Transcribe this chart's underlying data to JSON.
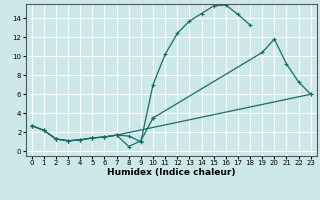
{
  "xlabel": "Humidex (Indice chaleur)",
  "background_color": "#cce8e8",
  "grid_color": "#ffffff",
  "line_color": "#1a6b6b",
  "xlim": [
    -0.5,
    23.5
  ],
  "ylim": [
    -0.5,
    15.5
  ],
  "xticks": [
    0,
    1,
    2,
    3,
    4,
    5,
    6,
    7,
    8,
    9,
    10,
    11,
    12,
    13,
    14,
    15,
    16,
    17,
    18,
    19,
    20,
    21,
    22,
    23
  ],
  "yticks": [
    0,
    2,
    4,
    6,
    8,
    10,
    12,
    14
  ],
  "series": [
    {
      "segments": [
        {
          "x": [
            0,
            1,
            2,
            3,
            4,
            5,
            6,
            7,
            8,
            9,
            10,
            11,
            12,
            13,
            14,
            15,
            16,
            17,
            18
          ],
          "y": [
            2.7,
            2.2,
            1.3,
            1.1,
            1.2,
            1.4,
            1.5,
            1.7,
            1.6,
            1.0,
            7.0,
            10.2,
            12.4,
            13.7,
            14.5,
            15.3,
            15.4,
            14.4,
            13.3
          ]
        }
      ]
    },
    {
      "segments": [
        {
          "x": [
            0,
            1,
            2,
            3,
            4,
            5,
            6,
            7,
            8,
            9,
            10
          ],
          "y": [
            2.7,
            2.2,
            1.3,
            1.1,
            1.2,
            1.4,
            1.5,
            1.7,
            0.5,
            1.1,
            3.5
          ]
        },
        {
          "x": [
            10,
            19,
            20,
            21,
            22,
            23
          ],
          "y": [
            3.5,
            10.4,
            11.8,
            9.2,
            7.3,
            6.0
          ]
        }
      ]
    },
    {
      "segments": [
        {
          "x": [
            0,
            1,
            2,
            3,
            4,
            5,
            6,
            7,
            23
          ],
          "y": [
            2.7,
            2.2,
            1.3,
            1.1,
            1.2,
            1.4,
            1.5,
            1.7,
            6.0
          ]
        }
      ]
    }
  ]
}
